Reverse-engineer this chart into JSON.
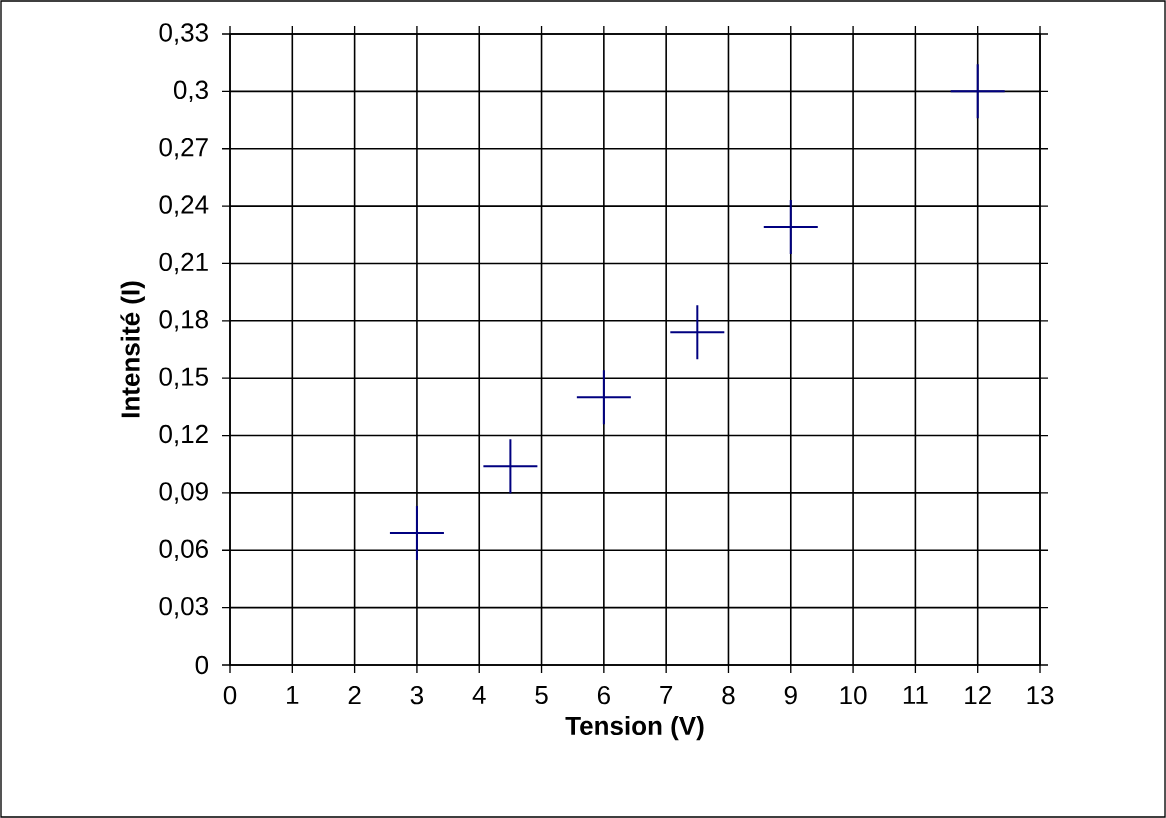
{
  "chart_data": {
    "type": "scatter",
    "xlabel": "Tension (V)",
    "ylabel": "Intensité (I)",
    "x": [
      3,
      4.5,
      6,
      7.5,
      9,
      12
    ],
    "series": [
      {
        "color": "#000080",
        "values": [
          0.069,
          0.104,
          0.14,
          0.174,
          0.229,
          0.3
        ]
      }
    ],
    "xlim": [
      0,
      13
    ],
    "xticks": [
      0,
      1,
      2,
      3,
      4,
      5,
      6,
      7,
      8,
      9,
      10,
      11,
      12,
      13
    ],
    "ylim": [
      0,
      0.33
    ],
    "yticks": [
      {
        "value": 0,
        "label": "0"
      },
      {
        "value": 0.03,
        "label": "0,03"
      },
      {
        "value": 0.06,
        "label": "0,06"
      },
      {
        "value": 0.09,
        "label": "0,09"
      },
      {
        "value": 0.12,
        "label": "0,12"
      },
      {
        "value": 0.15,
        "label": "0,15"
      },
      {
        "value": 0.18,
        "label": "0,18"
      },
      {
        "value": 0.21,
        "label": "0,21"
      },
      {
        "value": 0.24,
        "label": "0,24"
      },
      {
        "value": 0.27,
        "label": "0,27"
      },
      {
        "value": 0.3,
        "label": "0,3"
      },
      {
        "value": 0.33,
        "label": "0,33"
      }
    ],
    "grid": true,
    "marker": "cross"
  }
}
